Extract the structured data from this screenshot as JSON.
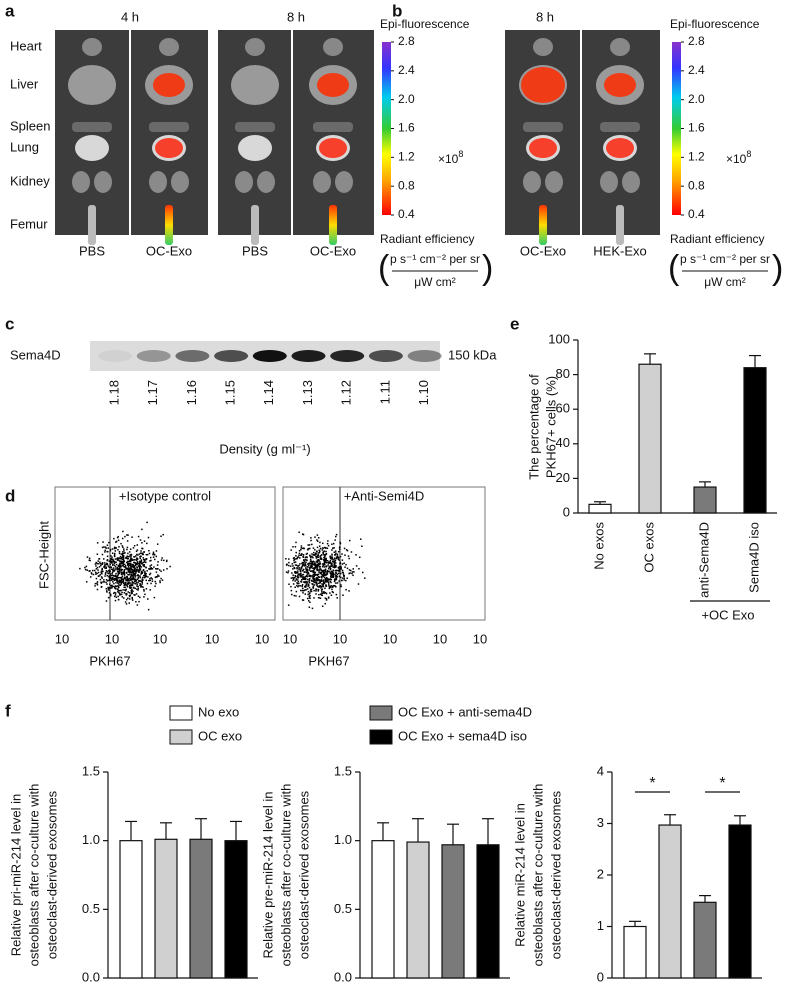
{
  "panel_a": {
    "letter": "a",
    "times": [
      "4 h",
      "8 h"
    ],
    "organs": [
      "Heart",
      "Liver",
      "Spleen",
      "Lung",
      "Kidney",
      "Femur"
    ],
    "groups": [
      "PBS",
      "OC-Exo",
      "PBS",
      "OC-Exo"
    ]
  },
  "panel_b": {
    "letter": "b",
    "time": "8 h",
    "groups": [
      "OC-Exo",
      "HEK-Exo"
    ]
  },
  "colorbar": {
    "title": "Epi-fluorescence",
    "lim": [
      0.4,
      2.8
    ],
    "ticks": [
      2.8,
      2.4,
      {
        "value": 2,
        "label": "2.0"
      },
      1.6,
      1.2,
      0.8,
      0.4
    ],
    "multiplier": "×10",
    "multiplier_exp": "8",
    "label": "Radiant efficiency",
    "unit_numerator": "p s⁻¹ cm⁻² per sr",
    "unit_denominator": "μW cm²"
  },
  "panel_c": {
    "letter": "c",
    "protein": "Sema4D",
    "densities": [
      "1.18",
      "1.17",
      "1.16",
      "1.15",
      "1.14",
      "1.13",
      "1.12",
      "1.11",
      "1.10"
    ],
    "size": "150 kDa",
    "xlabel": "Density (g ml⁻¹)"
  },
  "panel_d": {
    "letter": "d",
    "plots": [
      "+Isotype control",
      "+Anti-Semi4D"
    ],
    "ylabel": "FSC-Height",
    "xlabel": "PKH67",
    "xtick_labels": [
      "10",
      "10",
      "10",
      "10",
      "10"
    ]
  },
  "panel_e": {
    "letter": "e",
    "chart_data": {
      "type": "bar",
      "ylabel": [
        "The percentage of",
        "PKH67+ cells (%)"
      ],
      "categories": [
        "No exos",
        "OC exos",
        "anti-Sema4D",
        "Sema4D iso"
      ],
      "values": [
        5,
        86,
        15,
        84
      ],
      "errors": [
        1.5,
        6,
        3,
        7
      ],
      "colors": [
        "#ffffff",
        "#d0d0d0",
        "#7a7a7a",
        "#000000"
      ],
      "ylim": [
        0,
        100
      ],
      "yticks": [
        0,
        20,
        40,
        60,
        80,
        100
      ],
      "group_label": "+OC Exo"
    }
  },
  "panel_f": {
    "letter": "f",
    "legend": [
      {
        "name": "No exo",
        "color": "#ffffff"
      },
      {
        "name": "OC exo",
        "color": "#d0d0d0"
      },
      {
        "name": "OC Exo + anti-sema4D",
        "color": "#7a7a7a"
      },
      {
        "name": "OC Exo + sema4D iso",
        "color": "#000000"
      }
    ],
    "charts": [
      {
        "type": "bar",
        "ylabel": [
          "Relative pri-miR-214 level in",
          "osteoblasts after co-culture with",
          "osteoclast-derived exosomes"
        ],
        "values": [
          1.0,
          1.01,
          1.01,
          1.0
        ],
        "errors": [
          0.14,
          0.12,
          0.15,
          0.14
        ],
        "ylim": [
          0,
          1.5
        ],
        "yticks": [
          {
            "value": 0,
            "label": "0.0"
          },
          0.5,
          {
            "value": 1,
            "label": "1.0"
          },
          1.5
        ]
      },
      {
        "type": "bar",
        "ylabel": [
          "Relative pre-miR-214 level in",
          "osteoblasts after co-culture with",
          "osteoclast-derived exosomes"
        ],
        "values": [
          1.0,
          0.99,
          0.97,
          0.97
        ],
        "errors": [
          0.13,
          0.17,
          0.15,
          0.19
        ],
        "ylim": [
          0,
          1.5
        ],
        "yticks": [
          {
            "value": 0,
            "label": "0.0"
          },
          0.5,
          {
            "value": 1,
            "label": "1.0"
          },
          1.5
        ]
      },
      {
        "type": "bar",
        "ylabel": [
          "Relative miR-214 level in",
          "osteoblasts after co-culture with",
          "osteoclast-derived exosomes"
        ],
        "values": [
          1.0,
          2.97,
          1.47,
          2.97
        ],
        "errors": [
          0.1,
          0.2,
          0.13,
          0.18
        ],
        "ylim": [
          0,
          4
        ],
        "yticks": [
          0,
          1,
          2,
          3,
          4
        ],
        "annotations": [
          "*",
          "*"
        ]
      }
    ]
  }
}
